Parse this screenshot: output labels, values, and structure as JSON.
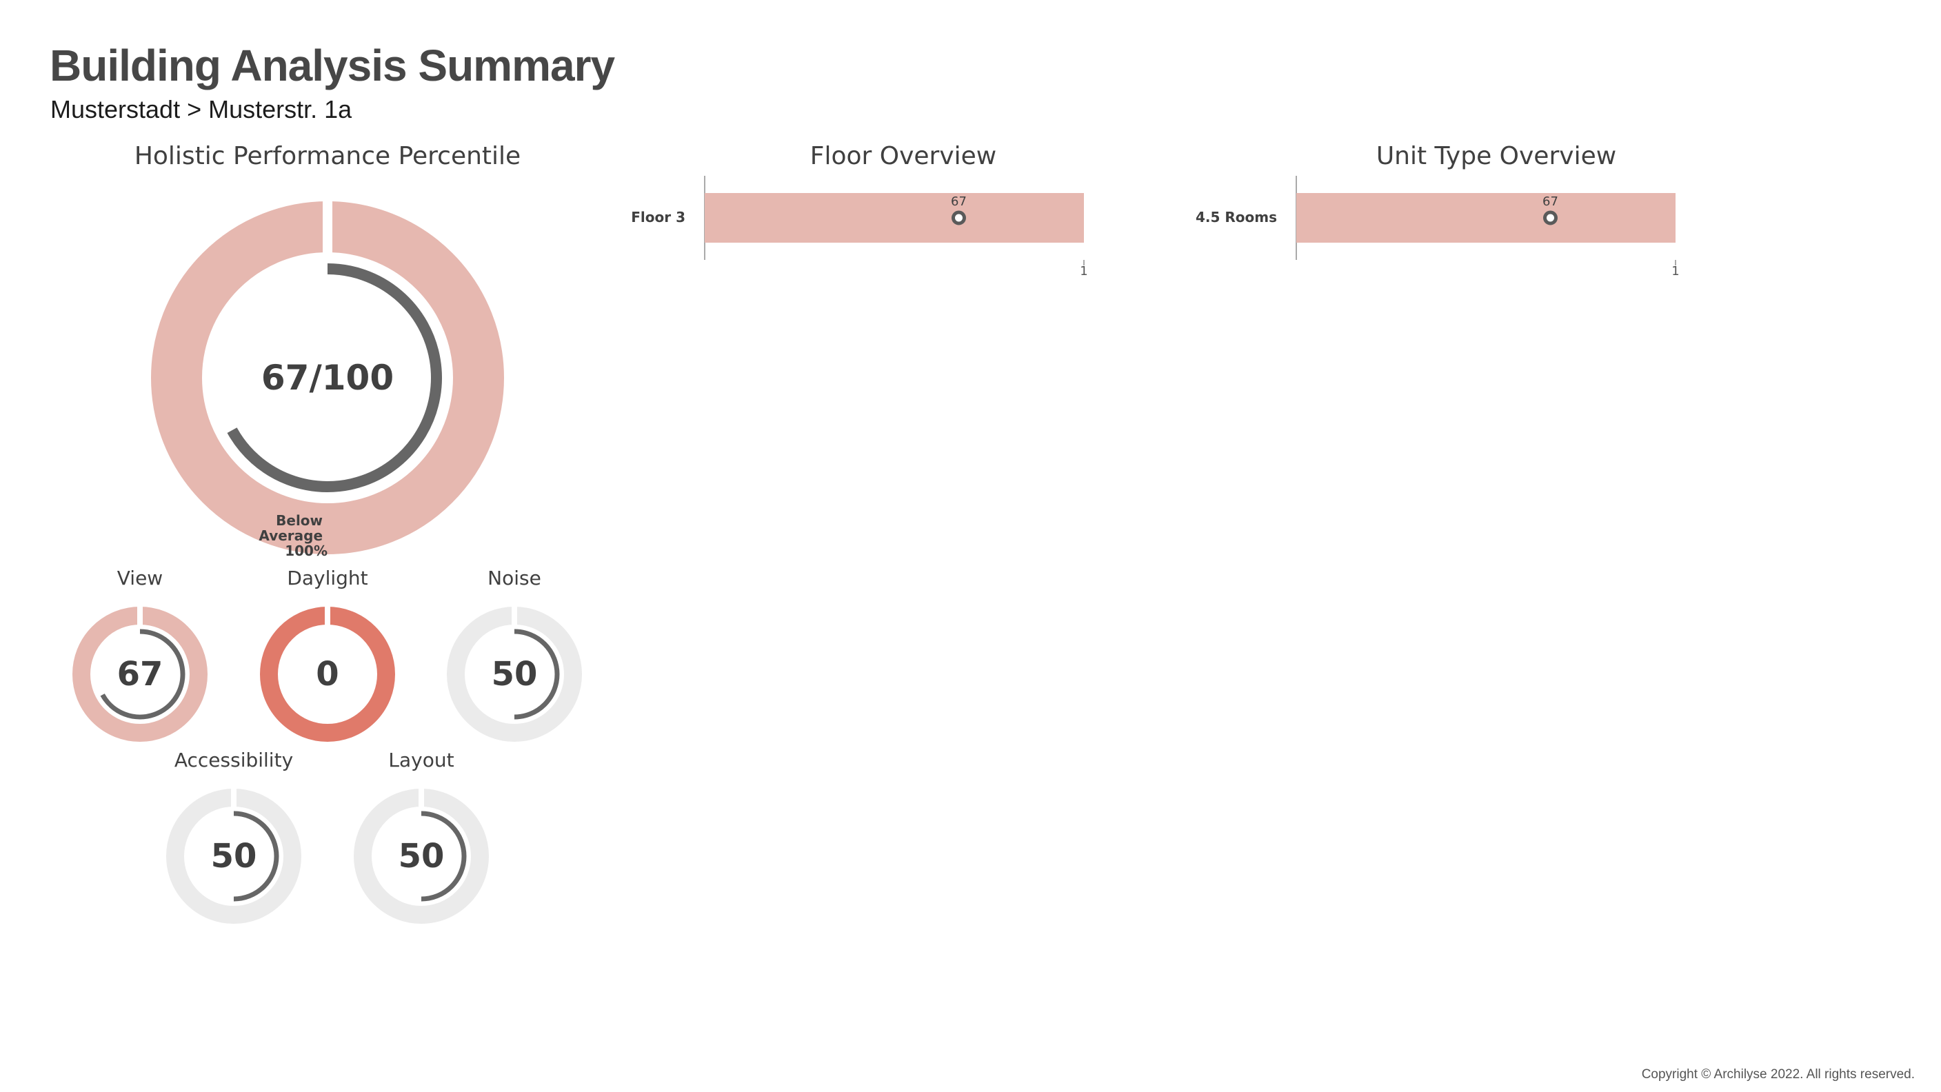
{
  "page": {
    "title": "Building Analysis Summary",
    "breadcrumb": "Musterstadt > Musterstr. 1a",
    "copyright": "Copyright © Archilyse 2022. All rights reserved."
  },
  "colors": {
    "band_pink": "#e6b8b0",
    "band_red": "#e07a6a",
    "band_grey": "#ebebeb",
    "arc": "#666666",
    "text": "#404040"
  },
  "chart_data": [
    {
      "type": "gauge",
      "title": "Holistic Performance Percentile",
      "value": 67,
      "max": 100,
      "value_label": "67/100",
      "band_label": "Below Average",
      "band_label_lines": [
        "Below",
        "Average",
        "100%"
      ],
      "band_color": "#e6b8b0"
    },
    {
      "type": "gauge-group",
      "gauges": [
        {
          "title": "View",
          "value": 67,
          "value_label": "67",
          "band_color": "#e6b8b0"
        },
        {
          "title": "Daylight",
          "value": 0,
          "value_label": "0",
          "band_color": "#e07a6a"
        },
        {
          "title": "Noise",
          "value": 50,
          "value_label": "50",
          "band_color": "#ebebeb"
        },
        {
          "title": "Accessibility",
          "value": 50,
          "value_label": "50",
          "band_color": "#ebebeb"
        },
        {
          "title": "Layout",
          "value": 50,
          "value_label": "50",
          "band_color": "#ebebeb"
        }
      ]
    },
    {
      "type": "bar",
      "orientation": "horizontal",
      "title": "Floor Overview",
      "categories": [
        "Floor 3"
      ],
      "values": [
        67
      ],
      "value_labels": [
        "67"
      ],
      "xlim": [
        0,
        100
      ],
      "x_tick_label": "1",
      "band_color": "#e6b8b0"
    },
    {
      "type": "bar",
      "orientation": "horizontal",
      "title": "Unit Type Overview",
      "categories": [
        "4.5 Rooms"
      ],
      "values": [
        67
      ],
      "value_labels": [
        "67"
      ],
      "xlim": [
        0,
        100
      ],
      "x_tick_label": "1",
      "band_color": "#e6b8b0"
    }
  ]
}
